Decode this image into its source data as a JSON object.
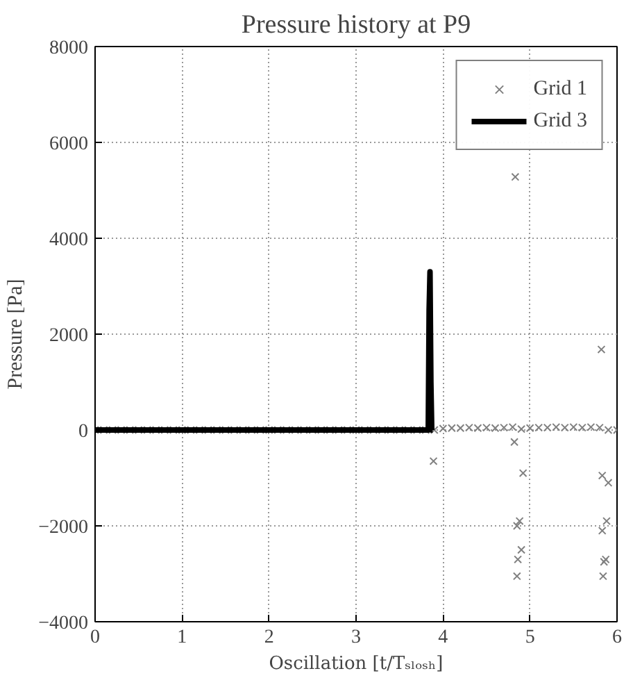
{
  "chart_data": {
    "type": "scatter",
    "title": "Pressure history at P9",
    "xlabel": "Oscillation [t/Tₛₗₒₛₕ]",
    "ylabel": "Pressure [Pa]",
    "xlim": [
      0,
      6
    ],
    "ylim": [
      -4000,
      8000
    ],
    "xticks": [
      0,
      1,
      2,
      3,
      4,
      5,
      6
    ],
    "yticks": [
      -4000,
      -2000,
      0,
      2000,
      4000,
      6000,
      8000
    ],
    "grid": true,
    "legend": "top right",
    "series": [
      {
        "name": "Grid 1",
        "marker": "cross",
        "color": "#808080",
        "x": [
          0,
          0.1,
          0.2,
          0.3,
          0.4,
          0.5,
          0.6,
          0.7,
          0.8,
          0.9,
          1.0,
          1.1,
          1.2,
          1.3,
          1.4,
          1.5,
          1.6,
          1.7,
          1.8,
          1.9,
          2.0,
          2.1,
          2.2,
          2.3,
          2.4,
          2.5,
          2.6,
          2.7,
          2.8,
          2.9,
          3.0,
          3.1,
          3.2,
          3.3,
          3.4,
          3.5,
          3.6,
          3.7,
          3.8,
          3.9,
          4.0,
          4.1,
          4.2,
          4.3,
          4.4,
          4.5,
          4.6,
          4.7,
          4.8,
          4.9,
          5.0,
          5.1,
          5.2,
          5.3,
          5.4,
          5.5,
          5.6,
          5.7,
          5.8,
          5.9,
          6.0,
          3.89,
          4.83,
          4.82,
          4.92,
          4.88,
          4.85,
          4.9,
          4.86,
          4.85,
          5.82,
          5.83,
          5.9,
          5.88,
          5.83,
          5.87,
          5.85,
          5.84
        ],
        "values": [
          0,
          0,
          0,
          0,
          0,
          0,
          0,
          0,
          0,
          0,
          0,
          0,
          0,
          0,
          0,
          0,
          0,
          0,
          0,
          0,
          0,
          0,
          0,
          0,
          0,
          0,
          0,
          0,
          0,
          0,
          0,
          0,
          0,
          0,
          0,
          0,
          0,
          0,
          0,
          0,
          30,
          40,
          40,
          50,
          40,
          50,
          40,
          50,
          60,
          20,
          40,
          50,
          50,
          60,
          50,
          60,
          50,
          60,
          50,
          0,
          0,
          -650,
          5280,
          -250,
          -900,
          -1900,
          -2000,
          -2500,
          -2700,
          -3050,
          1680,
          -950,
          -1100,
          -1900,
          -2100,
          -2700,
          -2750,
          -3050
        ]
      },
      {
        "name": "Grid 3",
        "type": "line",
        "color": "#000000",
        "x": [
          0,
          1,
          2,
          3,
          3.83,
          3.84,
          3.85,
          3.86,
          3.87,
          3.88
        ],
        "values": [
          0,
          0,
          0,
          0,
          0,
          2500,
          3300,
          1000,
          0,
          0
        ]
      }
    ]
  }
}
